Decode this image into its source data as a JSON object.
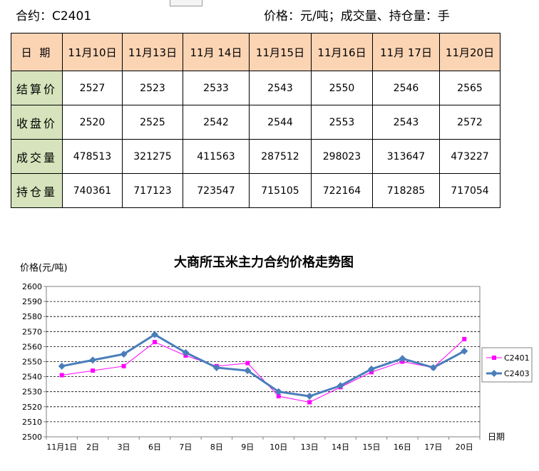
{
  "header": {
    "contract": "合约：C2401",
    "units": "价格：元/吨；成交量、持仓量：手",
    "return_mark": "↵"
  },
  "table": {
    "header_label": "日 期",
    "dates": [
      "11月10日",
      "11月13日",
      "11月 14日",
      "11月15日",
      "11月16日",
      "11月 17日",
      "11月20日"
    ],
    "rows": [
      {
        "label": "结算价",
        "values": [
          "2527",
          "2523",
          "2533",
          "2543",
          "2550",
          "2546",
          "2565"
        ]
      },
      {
        "label": "收盘价",
        "values": [
          "2520",
          "2525",
          "2542",
          "2544",
          "2553",
          "2543",
          "2572"
        ]
      },
      {
        "label": "成交量",
        "values": [
          "478513",
          "321275",
          "411563",
          "287512",
          "298023",
          "313647",
          "473227"
        ]
      },
      {
        "label": "持仓量",
        "values": [
          "740361",
          "717123",
          "723547",
          "715105",
          "722164",
          "718285",
          "717054"
        ]
      }
    ]
  },
  "chart_data": {
    "type": "line",
    "title": "大商所玉米主力合约价格走势图",
    "ylabel": "价格(元/吨)",
    "xlabel": "日期",
    "ylim": [
      2500,
      2600
    ],
    "yticks": [
      2500,
      2510,
      2520,
      2530,
      2540,
      2550,
      2560,
      2570,
      2580,
      2590,
      2600
    ],
    "grid": true,
    "legend_position": "right",
    "categories": [
      "11月1日",
      "2日",
      "3日",
      "6日",
      "7日",
      "8日",
      "9日",
      "10日",
      "13日",
      "14日",
      "15日",
      "16日",
      "17日",
      "20日"
    ],
    "series": [
      {
        "name": "C2401",
        "color": "#ff00ff",
        "marker": "square",
        "values": [
          2541,
          2544,
          2547,
          2563,
          2554,
          2547,
          2549,
          2527,
          2523,
          2533,
          2543,
          2550,
          2546,
          2565
        ]
      },
      {
        "name": "C2403",
        "color": "#4a7ebb",
        "marker": "diamond",
        "values": [
          2547,
          2551,
          2555,
          2568,
          2556,
          2546,
          2544,
          2530,
          2527,
          2534,
          2545,
          2552,
          2546,
          2557
        ]
      }
    ]
  }
}
